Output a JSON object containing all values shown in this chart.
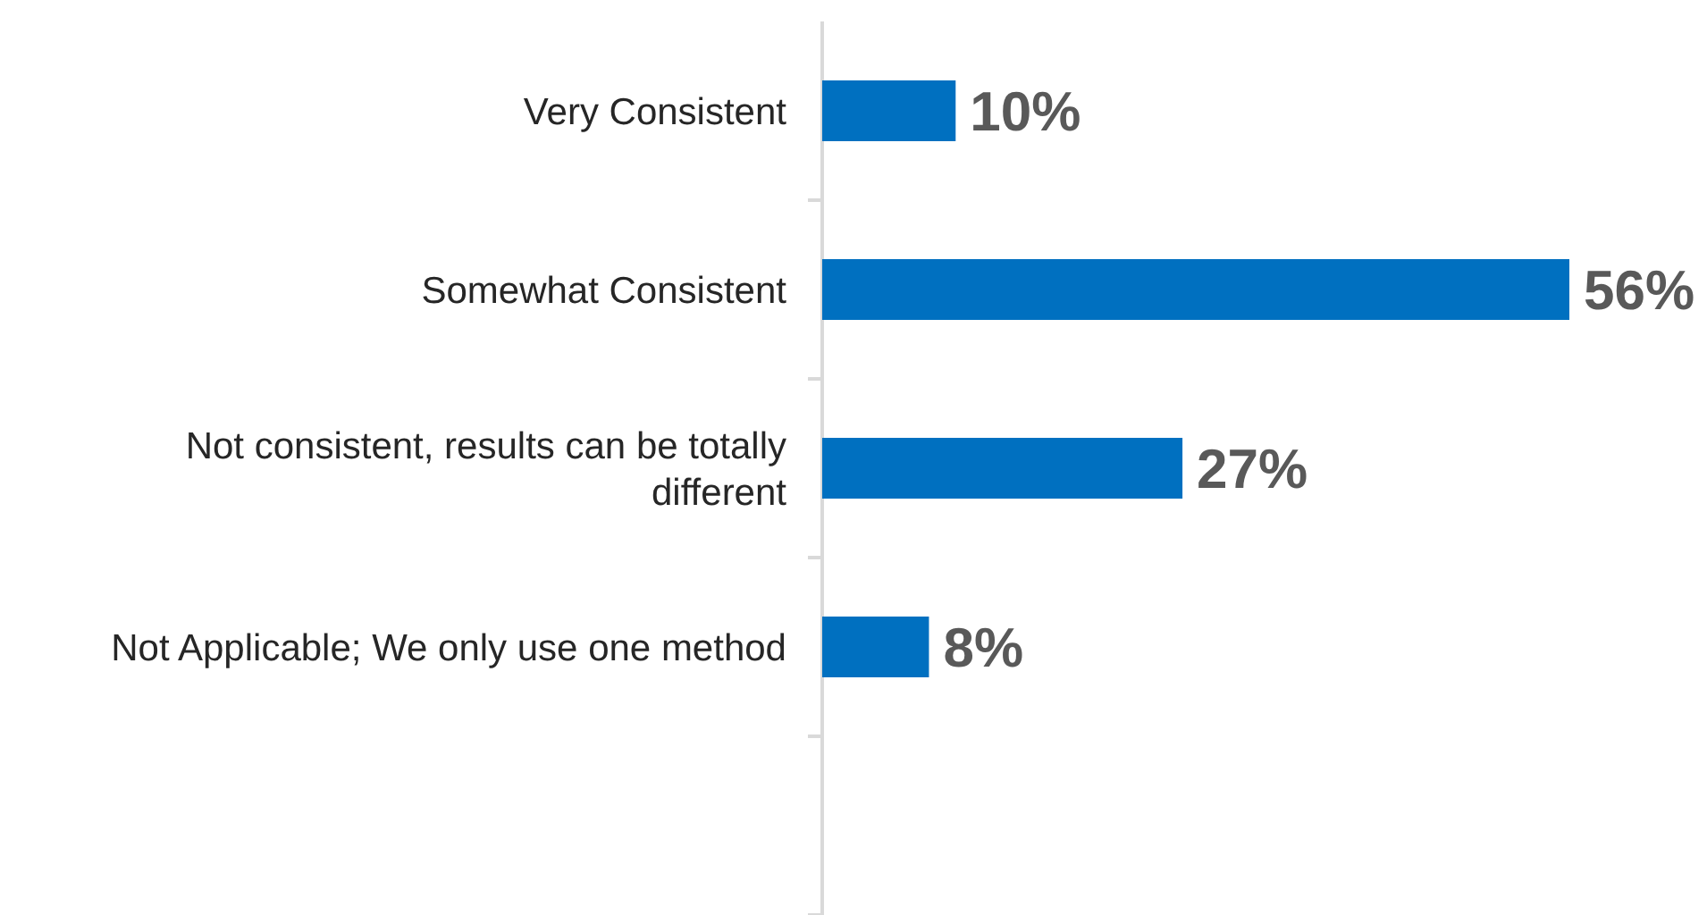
{
  "chart_data": {
    "type": "bar",
    "orientation": "horizontal",
    "categories": [
      "Very Consistent",
      "Somewhat Consistent",
      "Not consistent, results can be totally different",
      "Not Applicable; We only use one method",
      null
    ],
    "values": [
      10,
      56,
      27,
      8,
      null
    ],
    "value_labels": [
      "10%",
      "56%",
      "27%",
      "8%",
      null
    ],
    "color": "#0070c0"
  }
}
